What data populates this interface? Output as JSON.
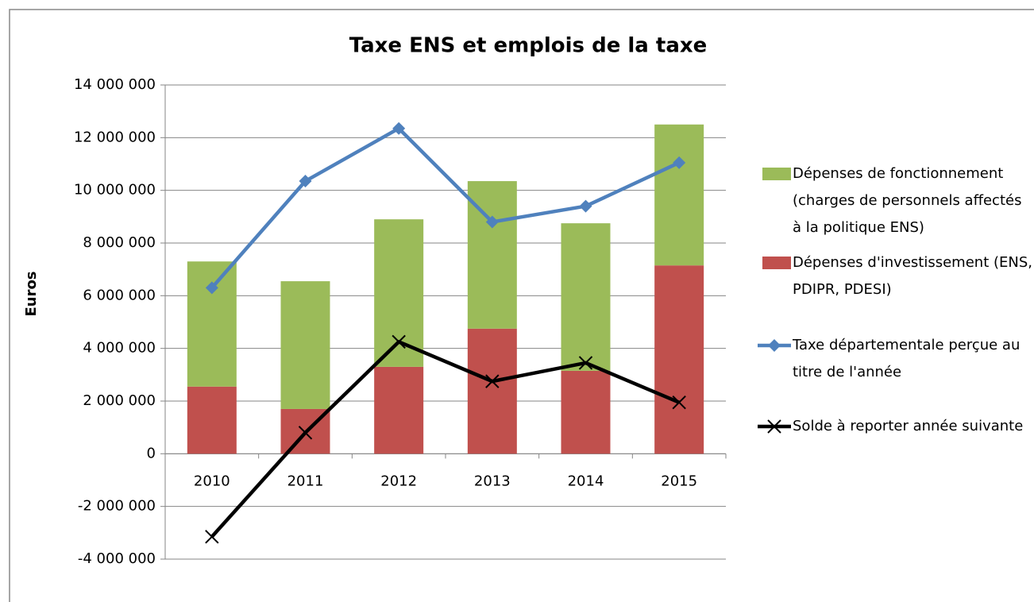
{
  "chart_data": {
    "type": "bar",
    "title": "Taxe ENS et emplois de la taxe",
    "y_label": "Euros",
    "categories": [
      "2010",
      "2011",
      "2012",
      "2013",
      "2014",
      "2015"
    ],
    "series": [
      {
        "name": "Dépenses de fonctionnement (charges de personnels affectés à la politique ENS)",
        "type": "bar",
        "color": "#9bbb59",
        "values": [
          4750000,
          4850000,
          5600000,
          5600000,
          5600000,
          5350000
        ]
      },
      {
        "name": "Dépenses d'investissement (ENS, PDIPR, PDESI)",
        "type": "bar",
        "color": "#c0504d",
        "values": [
          2550000,
          1700000,
          3300000,
          4750000,
          3150000,
          7150000
        ]
      },
      {
        "name": "Taxe départementale perçue au titre de l'année",
        "type": "line",
        "marker": "diamond",
        "color": "#4f81bd",
        "values": [
          6300000,
          10350000,
          12350000,
          8800000,
          9400000,
          11050000
        ]
      },
      {
        "name": "Solde à reporter année suivante",
        "type": "line",
        "marker": "x",
        "color": "#000000",
        "values": [
          -3150000,
          800000,
          4250000,
          2750000,
          3450000,
          1950000
        ]
      }
    ],
    "ylim": [
      -4000000,
      14000000
    ],
    "yticks": [
      {
        "value": -4000000,
        "label": "-4 000 000"
      },
      {
        "value": -2000000,
        "label": "-2 000 000"
      },
      0,
      {
        "value": 2000000,
        "label": "2 000 000"
      },
      {
        "value": 4000000,
        "label": "4 000 000"
      },
      {
        "value": 6000000,
        "label": "6 000 000"
      },
      {
        "value": 8000000,
        "label": "8 000 000"
      },
      {
        "value": 10000000,
        "label": "10 000 000"
      },
      {
        "value": 12000000,
        "label": "12 000 000"
      },
      {
        "value": 14000000,
        "label": "14 000 000"
      }
    ],
    "grid": true
  }
}
